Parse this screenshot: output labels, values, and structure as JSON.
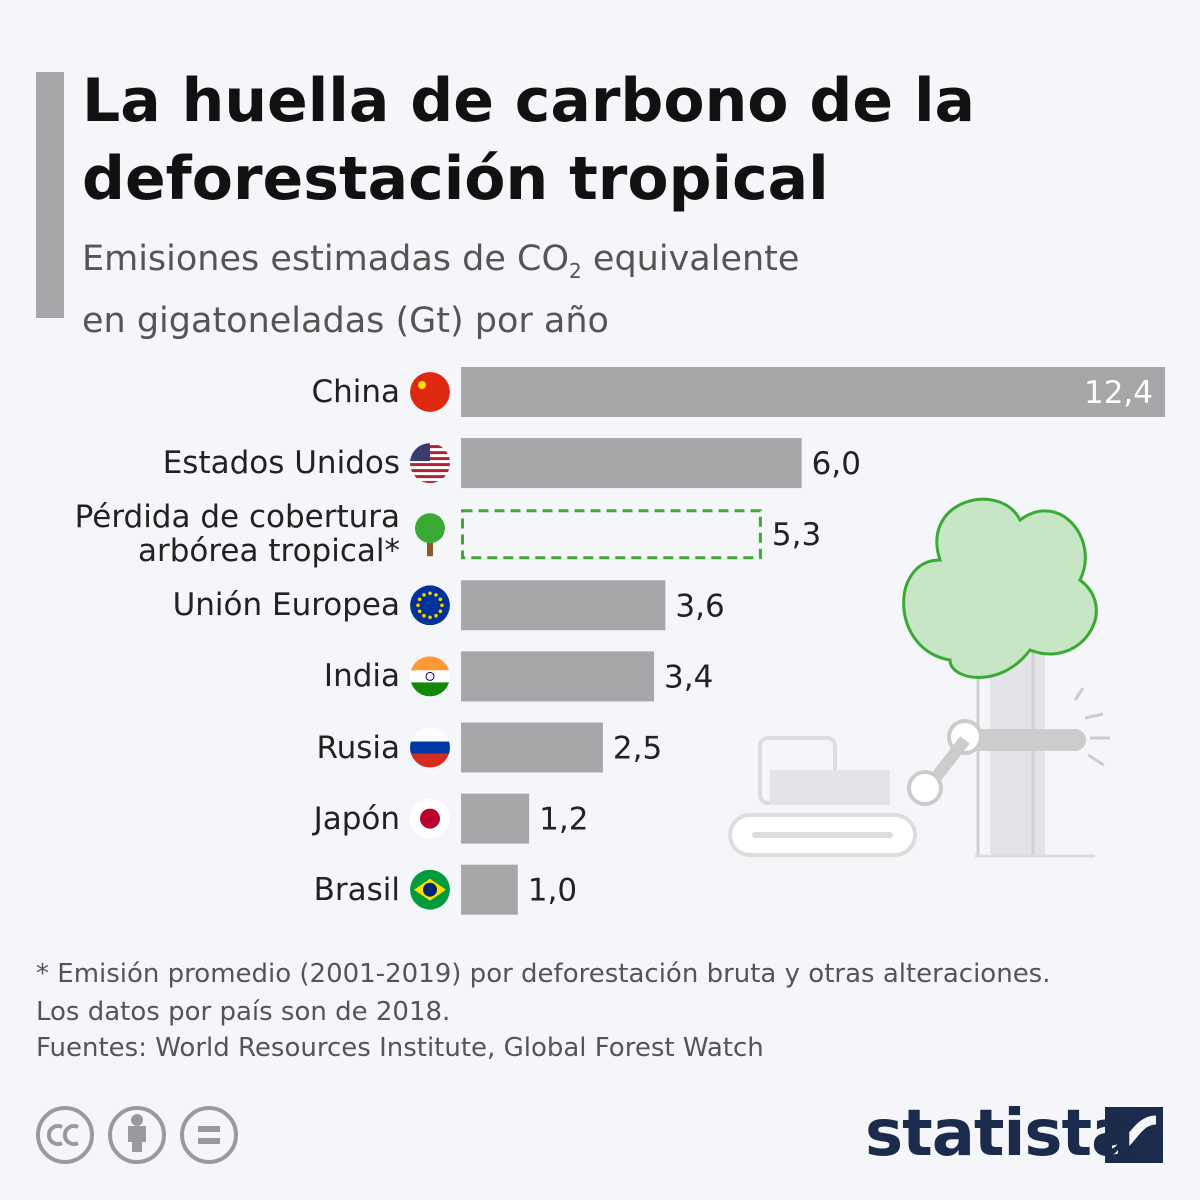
{
  "chart_data": {
    "type": "bar",
    "orientation": "horizontal",
    "title": "La huella de carbono de la deforestación tropical",
    "subtitle": {
      "before": "Emisiones estimadas de CO",
      "subscript": "2",
      "after": "equivalente en gigatoneladas (Gt) por año"
    },
    "categories": [
      "China",
      "Estados Unidos",
      "Pérdida de cobertura arbórea tropical*",
      "Unión Europea",
      "India",
      "Rusia",
      "Japón",
      "Brasil"
    ],
    "values": [
      12.4,
      6.0,
      5.3,
      3.6,
      3.4,
      2.5,
      1.2,
      1.0
    ],
    "value_labels": [
      "12,4",
      "6,0",
      "5,3",
      "3,6",
      "3,4",
      "2,5",
      "1,2",
      "1,0"
    ],
    "colors": [
      "#a7a6a8",
      "#a7a6a8",
      "#3aaa35",
      "#a7a6a8",
      "#a7a6a8",
      "#a7a6a8",
      "#a7a6a8",
      "#a7a6a8"
    ],
    "outline_only": [
      false,
      false,
      true,
      false,
      false,
      false,
      false,
      false
    ],
    "footnote": [
      "* Emisión promedio (2001-2019) por deforestación bruta y otras alteraciones.",
      "Los datos por país son de 2018."
    ],
    "source": "Fuentes: World Resources Institute, Global Forest Watch",
    "brand": "statista"
  }
}
